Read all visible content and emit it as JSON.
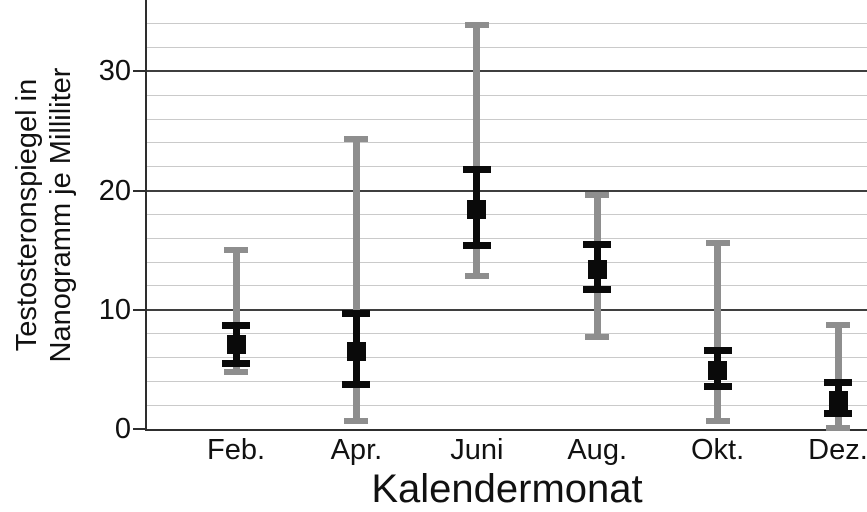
{
  "chart_data": {
    "type": "scatter",
    "subtype": "errorbar",
    "title": "",
    "xlabel": "Kalendermonat",
    "ylabel": "Testosteronspiegel in Nanogramm je Milliliter",
    "ylabel_lines": [
      "Testosteronspiegel in",
      "Nanogramm je Milliliter"
    ],
    "categories": [
      "Feb.",
      "Apr.",
      "Juni",
      "Aug.",
      "Okt.",
      "Dez."
    ],
    "y_ticks": [
      0,
      10,
      20,
      30
    ],
    "ylim": [
      0,
      36
    ],
    "minor_gridline_step": 2,
    "grid": "on",
    "legend": "none",
    "series": [
      {
        "name": "mean",
        "marker": "filled-square",
        "color": "#0a0a0a",
        "values": [
          7.1,
          6.5,
          18.4,
          13.4,
          4.9,
          2.4
        ]
      },
      {
        "name": "inner-error-bar",
        "color": "#0a0a0a",
        "lo": [
          5.5,
          3.7,
          15.4,
          11.7,
          3.6,
          1.3
        ],
        "hi": [
          8.7,
          9.7,
          21.8,
          15.5,
          6.6,
          3.9
        ]
      },
      {
        "name": "outer-error-bar",
        "color": "#8e8e8e",
        "lo": [
          4.8,
          0.7,
          12.8,
          7.7,
          0.7,
          0.1
        ],
        "hi": [
          15.0,
          24.3,
          33.9,
          19.6,
          15.6,
          8.7
        ]
      }
    ],
    "colors": {
      "marker": "#0a0a0a",
      "inner_whisker": "#0a0a0a",
      "outer_whisker": "#8e8e8e",
      "major_gridline": "#3f3f3f",
      "minor_gridline": "#cacaca",
      "axis": "#2e2e2e",
      "text": "#111111",
      "background": "#ffffff"
    }
  }
}
